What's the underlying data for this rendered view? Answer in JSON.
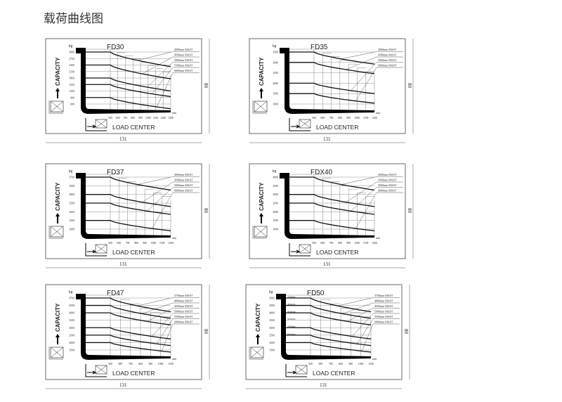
{
  "page": {
    "title": "载荷曲线图"
  },
  "common": {
    "ylabel": "CAPACITY",
    "xlabel": "LOAD CENTER",
    "yunit": "kg",
    "xunit": "mm",
    "width_dim": "131",
    "height_dim": "80"
  },
  "chart_data": [
    {
      "type": "line",
      "title": "FD30",
      "yticks": [
        "3000",
        "2700",
        "2400",
        "2100",
        "1800",
        "1500",
        "1200",
        "900",
        "600"
      ],
      "xticks": [
        "500",
        "600",
        "700",
        "800",
        "900",
        "1000",
        "1100",
        "1200",
        "1300"
      ],
      "series": [
        "4000mm MAST",
        "4500mm MAST",
        "5000mm MAST",
        "5500mm MAST",
        "6000mm MAST"
      ],
      "inline": []
    },
    {
      "type": "line",
      "title": "FD35",
      "yticks": [
        "3500",
        "3000",
        "2500",
        "2000",
        "1500",
        "1000"
      ],
      "xticks": [
        "500",
        "600",
        "700",
        "800",
        "900",
        "1000",
        "1100",
        "1200"
      ],
      "series": [
        "4000mm MAST",
        "4500mm MAST",
        "5000mm MAST",
        "6000mm MAST"
      ],
      "inline": []
    },
    {
      "type": "line",
      "title": "FD37",
      "yticks": [
        "3700",
        "3500",
        "3000",
        "2500",
        "2000",
        "1500",
        "1000"
      ],
      "xticks": [
        "500",
        "600",
        "700",
        "800",
        "900",
        "1000",
        "1100",
        "1200"
      ],
      "series": [
        "4000mm MAST",
        "4500mm MAST",
        "5000mm MAST",
        "6000mm MAST"
      ],
      "inline": []
    },
    {
      "type": "line",
      "title": "FDX40",
      "yticks": [
        "4000",
        "3500",
        "3000",
        "2500",
        "2000",
        "1500",
        "1000"
      ],
      "xticks": [
        "500",
        "600",
        "700",
        "800",
        "900",
        "1000",
        "1100",
        "1200"
      ],
      "series": [
        "4000mm MAST",
        "4500mm MAST",
        "5000mm MAST",
        "6000mm MAST"
      ],
      "inline": []
    },
    {
      "type": "line",
      "title": "FD47",
      "yticks": [
        "4700",
        "4500",
        "4000",
        "3500",
        "3000",
        "2500",
        "2000",
        "1500"
      ],
      "xticks": [
        "500",
        "600",
        "700",
        "800",
        "900",
        "1000",
        "1100"
      ],
      "series": [
        "3700mm MAST",
        "4000mm MAST",
        "4500mm MAST",
        "5000mm MAST",
        "5500mm MAST",
        "6000mm MAST"
      ],
      "inline": []
    },
    {
      "type": "line",
      "title": "FD50",
      "yticks": [
        "5000",
        "4500",
        "4000",
        "3500",
        "3000",
        "2500",
        "2000",
        "1500"
      ],
      "xticks": [
        "500",
        "600",
        "700",
        "800",
        "900",
        "1000",
        "1100"
      ],
      "series": [
        "3700mm MAST",
        "4000mm MAST",
        "4500mm MAST",
        "5000mm MAST",
        "5500mm MAST",
        "6000mm MAST"
      ],
      "inline": [
        "3700mm",
        "4000mm",
        "4500mm",
        "5000mm",
        "5500mm",
        "6000mm"
      ]
    }
  ]
}
